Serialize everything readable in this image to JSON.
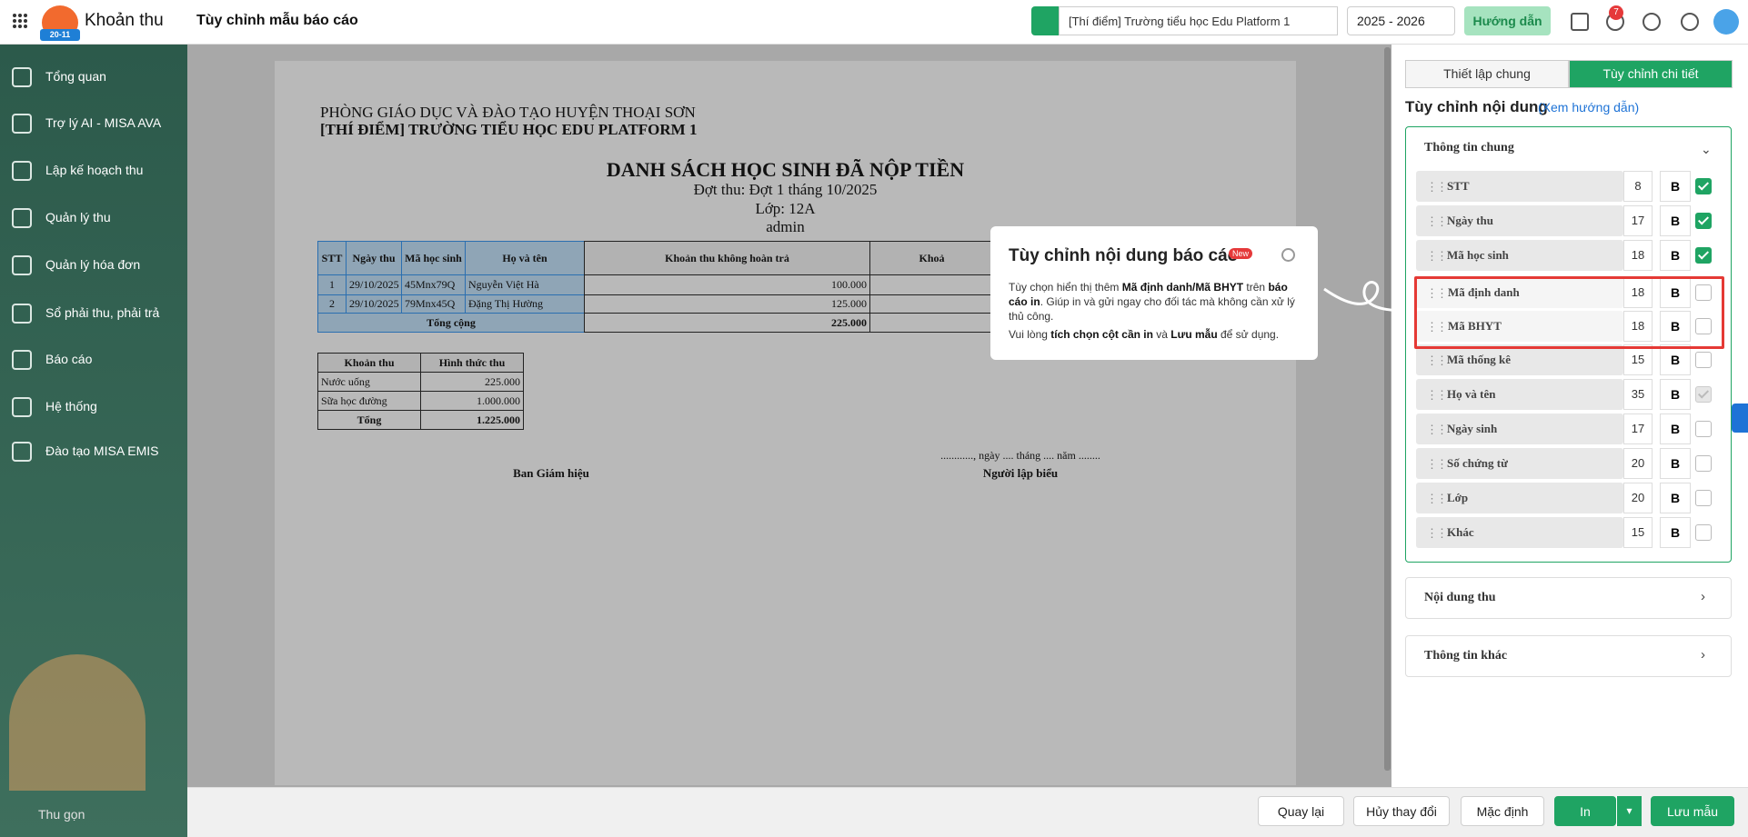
{
  "header": {
    "app_name": "Khoản thu",
    "page_title": "Tùy chỉnh mẫu báo cáo",
    "logo_badge": "20-11",
    "school": "[Thí điểm] Trường tiểu học Edu Platform 1",
    "school_year": "2025 - 2026",
    "guide_button": "Hướng dẫn",
    "notification_count": "7"
  },
  "sidebar": {
    "items": [
      "Tổng quan",
      "Trợ lý AI - MISA AVA",
      "Lập kế hoạch thu",
      "Quản lý thu",
      "Quản lý hóa đơn",
      "Sổ phải thu, phải trả",
      "Báo cáo",
      "Hệ thống",
      "Đào tạo MISA EMIS"
    ],
    "collapse": "Thu gọn"
  },
  "report": {
    "department": "PHÒNG GIÁO DỤC VÀ ĐÀO TẠO HUYỆN THOẠI SƠN",
    "school": "[THÍ ĐIỂM] TRƯỜNG TIỂU HỌC EDU PLATFORM 1",
    "title": "DANH SÁCH HỌC SINH ĐÃ NỘP TIỀN",
    "period": "Đợt thu: Đợt 1 tháng 10/2025",
    "class": "Lớp: 12A",
    "creator": "admin",
    "table": {
      "columns": [
        "STT",
        "Ngày thu",
        "Mã học sinh",
        "Họ và tên",
        "Khoản thu không hoàn trả",
        "Khoả"
      ],
      "rows": [
        [
          "1",
          "29/10/2025",
          "45Mnx79Q",
          "Nguyễn Việt Hà",
          "100.000"
        ],
        [
          "2",
          "29/10/2025",
          "79Mnx45Q",
          "Đặng Thị Hường",
          "125.000"
        ]
      ],
      "total_label": "Tổng cộng",
      "total": "225.000"
    },
    "summary": {
      "columns": [
        "Khoản thu",
        "Hình thức thu"
      ],
      "rows": [
        [
          "Nước uống",
          "225.000"
        ],
        [
          "Sữa học đường",
          "1.000.000"
        ]
      ],
      "total_label": "Tổng",
      "total": "1.225.000"
    },
    "date_line": "............, ngày .... tháng .... năm ........",
    "signer_left": "Ban Giám hiệu",
    "signer_right": "Người lập biểu"
  },
  "popup": {
    "title": "Tùy chỉnh nội dung báo cáo",
    "badge": "New",
    "paragraphs": [
      [
        {
          "text": "Tùy chọn hiển thị thêm "
        },
        {
          "text": "Mã định danh/Mã BHYT",
          "bold": true
        },
        {
          "text": " trên "
        },
        {
          "text": "báo cáo in",
          "bold": true
        },
        {
          "text": ". Giúp in và gửi ngay cho đối tác mà không cần xử lý thủ công."
        }
      ],
      [
        {
          "text": "Vui lòng "
        },
        {
          "text": "tích chọn cột cần in",
          "bold": true
        },
        {
          "text": " và "
        },
        {
          "text": "Lưu mẫu",
          "bold": true
        },
        {
          "text": " để sử dụng."
        }
      ]
    ]
  },
  "panel": {
    "tabs": [
      "Thiết lập chung",
      "Tùy chỉnh chi tiết"
    ],
    "active_tab": 1,
    "heading": "Tùy chỉnh nội dung",
    "guide_link": "(Xem hướng dẫn)",
    "section": "Thông tin chung",
    "bold_label": "B",
    "fields": [
      {
        "name": "STT",
        "size": 8,
        "checked": true
      },
      {
        "name": "Ngày thu",
        "size": 17,
        "checked": true
      },
      {
        "name": "Mã học sinh",
        "size": 18,
        "checked": true
      },
      {
        "name": "Mã định danh",
        "size": 18,
        "checked": false,
        "highlighted": true
      },
      {
        "name": "Mã BHYT",
        "size": 18,
        "checked": false,
        "highlighted": true
      },
      {
        "name": "Mã thống kê",
        "size": 15,
        "checked": false
      },
      {
        "name": "Họ và tên",
        "size": 35,
        "checked": true,
        "disabled": true
      },
      {
        "name": "Ngày sinh",
        "size": 17,
        "checked": false
      },
      {
        "name": "Số chứng từ",
        "size": 20,
        "checked": false
      },
      {
        "name": "Lớp",
        "size": 20,
        "checked": false
      },
      {
        "name": "Khác",
        "size": 15,
        "checked": false
      }
    ],
    "other_sections": [
      "Nội dung thu",
      "Thông tin khác"
    ]
  },
  "footer_buttons": [
    "Quay lại",
    "Hủy thay đổi",
    "Mặc định",
    "In",
    "Lưu mẫu"
  ]
}
